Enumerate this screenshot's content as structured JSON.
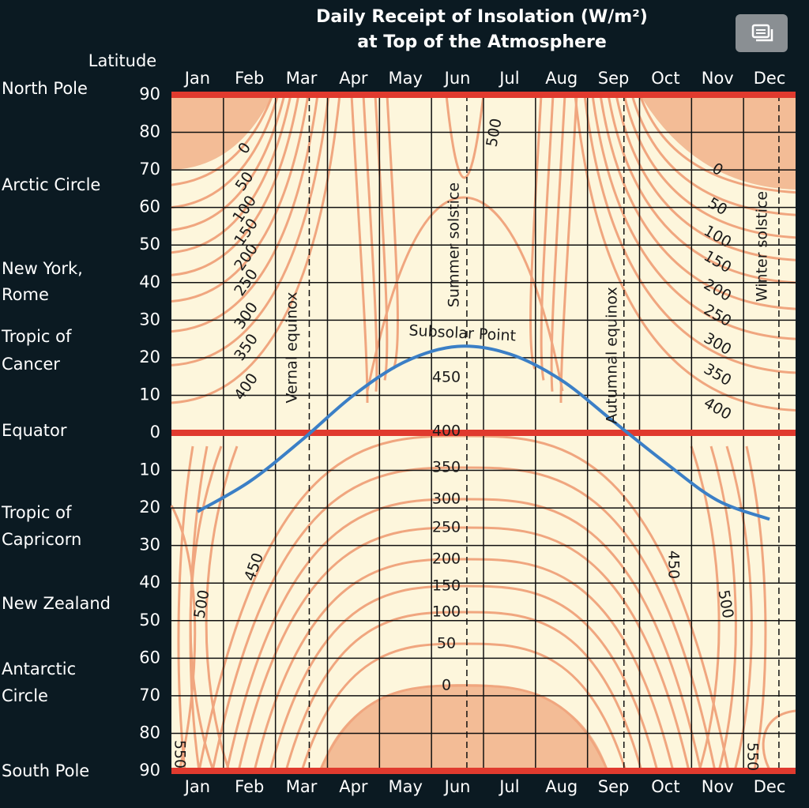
{
  "chart_data": {
    "type": "contour",
    "title": [
      "Daily Receipt of Insolation (W/m²)",
      "at Top of the Atmosphere"
    ],
    "y_label": "Latitude",
    "categories": [
      "Jan",
      "Feb",
      "Mar",
      "Apr",
      "May",
      "Jun",
      "Jul",
      "Aug",
      "Sep",
      "Oct",
      "Nov",
      "Dec"
    ],
    "ylim": [
      90,
      -90
    ],
    "yticks": [
      90,
      80,
      70,
      60,
      50,
      40,
      30,
      20,
      10,
      0,
      {
        "value": -10,
        "label": "10"
      },
      {
        "value": -20,
        "label": "20"
      },
      {
        "value": -30,
        "label": "30"
      },
      {
        "value": -40,
        "label": "40"
      },
      {
        "value": -50,
        "label": "50"
      },
      {
        "value": -60,
        "label": "60"
      },
      {
        "value": -70,
        "label": "70"
      },
      {
        "value": -80,
        "label": "80"
      },
      {
        "value": -90,
        "label": "90"
      }
    ],
    "places": [
      [
        "North Pole"
      ],
      [
        "Arctic Circle"
      ],
      [
        "New York,",
        "Rome"
      ],
      [
        "Tropic of",
        "Cancer"
      ],
      [
        "Equator"
      ],
      [
        "Tropic of",
        "Capricorn"
      ],
      [
        "New Zealand"
      ],
      [
        "Antarctic",
        "Circle"
      ],
      [
        "South Pole"
      ]
    ],
    "subsolar_point": {
      "name": "Subsolar Point",
      "color": "#3b7fc6",
      "values": [
        -21,
        -13,
        -2,
        10,
        19,
        23,
        21,
        14,
        3,
        -8,
        -18,
        -23
      ]
    },
    "markers": [
      "Vernal equinox",
      "Summer solstice",
      "Autumnal equinox",
      "Winter solstice"
    ],
    "contour_labels": {
      "north_left": [
        0,
        50,
        100,
        150,
        200,
        250,
        300,
        350,
        400
      ],
      "north_right": [
        0,
        50,
        100,
        150,
        200,
        250,
        300,
        350,
        400
      ],
      "center": [
        450,
        400,
        350,
        300,
        250,
        200,
        150,
        100,
        50,
        0
      ],
      "other": [
        500,
        450,
        500,
        550,
        450,
        500,
        550
      ]
    },
    "contour_color": "#f0a67f",
    "shade_color": "#f3bc96",
    "grid": true
  }
}
